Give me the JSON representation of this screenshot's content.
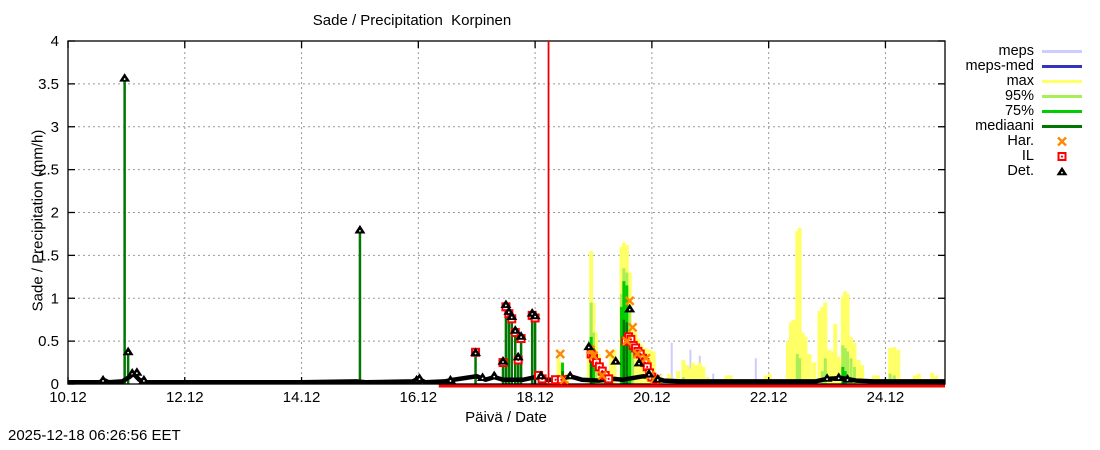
{
  "timestamp": "2025-12-18 06:26:56 EET",
  "chart_data": {
    "type": "mixed",
    "title": "Sade / Precipitation  Korpinen",
    "xlabel": "Päivä / Date",
    "ylabel": "Sade / Precipitation (mm/h)",
    "xlim": [
      10.0,
      25.02
    ],
    "ylim": [
      0,
      4
    ],
    "xticks": {
      "values": [
        10,
        12,
        14,
        16,
        18,
        20,
        22,
        24
      ],
      "labels": [
        "10.12",
        "12.12",
        "14.12",
        "16.12",
        "18.12",
        "20.12",
        "22.12",
        "24.12"
      ]
    },
    "yticks": {
      "values": [
        0,
        0.5,
        1,
        1.5,
        2,
        2.5,
        3,
        3.5,
        4
      ],
      "labels": [
        "0",
        "0.5",
        "1",
        "1.5",
        "2",
        "2.5",
        "3",
        "3.5",
        "4"
      ]
    },
    "grid": "dashed gray at major ticks",
    "legend_position": "outside right top",
    "now_line": {
      "x": 18.23,
      "color": "#ee0000"
    },
    "colors": {
      "meps": "#ccccff",
      "meps_med": "#3333bb",
      "max": "#ffff66",
      "p95": "#aaee55",
      "p75": "#00cc00",
      "mediaani": "#007700",
      "har": "#ff8800",
      "il": "#ff0000",
      "det": "#000000",
      "grid": "#999999",
      "axis": "#000000"
    },
    "legend": [
      {
        "label": "meps",
        "kind": "line",
        "color": "#ccccff"
      },
      {
        "label": "meps-med",
        "kind": "line",
        "color": "#3333bb"
      },
      {
        "label": "max",
        "kind": "line",
        "color": "#ffff66"
      },
      {
        "label": "95%",
        "kind": "line",
        "color": "#aaee55"
      },
      {
        "label": "75%",
        "kind": "line",
        "color": "#00cc00"
      },
      {
        "label": "mediaani",
        "kind": "line",
        "color": "#007700"
      },
      {
        "label": "Har.",
        "kind": "cross",
        "color": "#ff8800"
      },
      {
        "label": "IL",
        "kind": "square",
        "color": "#ff0000"
      },
      {
        "label": "Det.",
        "kind": "triangle",
        "color": "#000000"
      }
    ],
    "series": [
      {
        "name": "meps",
        "kind": "impulse",
        "color": "#ccccff",
        "width": 2,
        "points": [
          [
            20.15,
            0.12
          ],
          [
            20.34,
            0.48
          ],
          [
            20.45,
            0.08
          ],
          [
            20.55,
            0.1
          ],
          [
            20.66,
            0.4
          ],
          [
            20.73,
            0.15
          ],
          [
            20.82,
            0.33
          ],
          [
            21.05,
            0.12
          ],
          [
            21.78,
            0.3
          ]
        ]
      },
      {
        "name": "meps-med",
        "kind": "impulse",
        "color": "#3333bb",
        "width": 2,
        "points": []
      },
      {
        "name": "max",
        "kind": "impulse",
        "color": "#ffff66",
        "width": 4,
        "points": [
          [
            18.4,
            0.3
          ],
          [
            18.45,
            0.22
          ],
          [
            18.55,
            0.12
          ],
          [
            18.92,
            0.35
          ],
          [
            18.96,
            1.55
          ],
          [
            19.0,
            0.95
          ],
          [
            19.04,
            0.6
          ],
          [
            19.09,
            0.35
          ],
          [
            19.15,
            0.2
          ],
          [
            19.3,
            0.32
          ],
          [
            19.36,
            0.4
          ],
          [
            19.48,
            1.6
          ],
          [
            19.52,
            1.65
          ],
          [
            19.57,
            1.62
          ],
          [
            19.62,
            1.3
          ],
          [
            19.67,
            0.65
          ],
          [
            19.72,
            0.6
          ],
          [
            19.77,
            0.52
          ],
          [
            19.82,
            0.46
          ],
          [
            19.89,
            0.42
          ],
          [
            19.96,
            0.4
          ],
          [
            20.03,
            0.38
          ],
          [
            20.15,
            0.1
          ],
          [
            20.3,
            0.12
          ],
          [
            20.45,
            0.15
          ],
          [
            20.54,
            0.28
          ],
          [
            20.6,
            0.22
          ],
          [
            20.65,
            0.18
          ],
          [
            20.7,
            0.25
          ],
          [
            20.76,
            0.22
          ],
          [
            20.82,
            0.25
          ],
          [
            20.88,
            0.2
          ],
          [
            20.95,
            0.08
          ],
          [
            21.28,
            0.1
          ],
          [
            21.35,
            0.1
          ],
          [
            21.95,
            0.1
          ],
          [
            22.02,
            0.12
          ],
          [
            22.33,
            0.5
          ],
          [
            22.38,
            0.72
          ],
          [
            22.43,
            0.75
          ],
          [
            22.49,
            1.78
          ],
          [
            22.53,
            1.82
          ],
          [
            22.58,
            0.6
          ],
          [
            22.63,
            0.55
          ],
          [
            22.7,
            0.35
          ],
          [
            22.78,
            0.25
          ],
          [
            22.87,
            0.85
          ],
          [
            22.92,
            0.9
          ],
          [
            22.97,
            0.95
          ],
          [
            23.03,
            0.4
          ],
          [
            23.09,
            0.38
          ],
          [
            23.14,
            0.7
          ],
          [
            23.2,
            0.32
          ],
          [
            23.27,
            1.02
          ],
          [
            23.31,
            1.08
          ],
          [
            23.35,
            1.05
          ],
          [
            23.41,
            0.55
          ],
          [
            23.47,
            0.48
          ],
          [
            23.54,
            0.28
          ],
          [
            23.6,
            0.22
          ],
          [
            23.8,
            0.1
          ],
          [
            23.87,
            0.1
          ],
          [
            24.08,
            0.42
          ],
          [
            24.15,
            0.43
          ],
          [
            24.22,
            0.4
          ],
          [
            24.5,
            0.1
          ],
          [
            24.57,
            0.12
          ],
          [
            24.8,
            0.13
          ],
          [
            24.87,
            0.1
          ]
        ]
      },
      {
        "name": "95%",
        "kind": "impulse",
        "color": "#aaee55",
        "width": 3,
        "points": [
          [
            18.96,
            0.95
          ],
          [
            19.0,
            0.6
          ],
          [
            19.04,
            0.35
          ],
          [
            19.48,
            1.05
          ],
          [
            19.52,
            1.35
          ],
          [
            19.57,
            1.3
          ],
          [
            19.62,
            0.9
          ],
          [
            19.67,
            0.45
          ],
          [
            20.54,
            0.08
          ],
          [
            22.49,
            0.35
          ],
          [
            22.53,
            0.3
          ],
          [
            22.92,
            0.15
          ],
          [
            22.97,
            0.3
          ],
          [
            23.27,
            0.45
          ],
          [
            23.31,
            0.42
          ],
          [
            23.35,
            0.38
          ],
          [
            23.41,
            0.3
          ],
          [
            23.47,
            0.2
          ],
          [
            24.08,
            0.12
          ],
          [
            24.15,
            0.1
          ]
        ]
      },
      {
        "name": "75%",
        "kind": "impulse",
        "color": "#00cc00",
        "width": 3,
        "points": [
          [
            18.47,
            0.25
          ],
          [
            18.96,
            0.55
          ],
          [
            19.0,
            0.42
          ],
          [
            19.48,
            0.9
          ],
          [
            19.52,
            1.2
          ],
          [
            19.57,
            1.15
          ],
          [
            19.62,
            0.6
          ],
          [
            23.27,
            0.2
          ],
          [
            23.31,
            0.15
          ]
        ]
      },
      {
        "name": "mediaani",
        "kind": "impulse",
        "color": "#007700",
        "width": 2.5,
        "points": [
          [
            10.97,
            3.57
          ],
          [
            11.03,
            0.38
          ],
          [
            15.0,
            1.8
          ],
          [
            16.98,
            0.35
          ],
          [
            17.45,
            0.25
          ],
          [
            17.5,
            0.92
          ],
          [
            17.55,
            0.83
          ],
          [
            17.6,
            0.78
          ],
          [
            17.66,
            0.62
          ],
          [
            17.71,
            0.3
          ],
          [
            17.76,
            0.55
          ],
          [
            17.95,
            0.82
          ],
          [
            18.0,
            0.79
          ],
          [
            18.47,
            0.15
          ],
          [
            18.96,
            0.3
          ],
          [
            19.52,
            0.75
          ],
          [
            19.57,
            0.72
          ]
        ]
      },
      {
        "name": "Har.",
        "kind": "cross",
        "color": "#ff8800",
        "points": [
          [
            18.43,
            0.35
          ],
          [
            18.5,
            0.05
          ],
          [
            18.95,
            0.4
          ],
          [
            19.0,
            0.33
          ],
          [
            19.15,
            0.1
          ],
          [
            19.28,
            0.35
          ],
          [
            19.57,
            0.5
          ],
          [
            19.62,
            0.97
          ],
          [
            19.67,
            0.66
          ],
          [
            19.75,
            0.35
          ],
          [
            19.9,
            0.3
          ],
          [
            19.97,
            0.1
          ],
          [
            20.05,
            0.06
          ]
        ]
      },
      {
        "name": "IL",
        "kind": "square",
        "color": "#ff0000",
        "baseline": {
          "from": 16.35,
          "to": 25.02,
          "y": 0.0
        },
        "points": [
          [
            16.98,
            0.37
          ],
          [
            17.45,
            0.25
          ],
          [
            17.5,
            0.9
          ],
          [
            17.55,
            0.82
          ],
          [
            17.6,
            0.76
          ],
          [
            17.66,
            0.6
          ],
          [
            17.71,
            0.28
          ],
          [
            17.76,
            0.53
          ],
          [
            17.95,
            0.8
          ],
          [
            18.0,
            0.77
          ],
          [
            18.06,
            0.1
          ],
          [
            18.12,
            0.06
          ],
          [
            18.35,
            0.05
          ],
          [
            18.45,
            0.05
          ],
          [
            18.96,
            0.35
          ],
          [
            19.0,
            0.3
          ],
          [
            19.05,
            0.25
          ],
          [
            19.1,
            0.2
          ],
          [
            19.15,
            0.15
          ],
          [
            19.2,
            0.1
          ],
          [
            19.26,
            0.06
          ],
          [
            19.55,
            0.5
          ],
          [
            19.6,
            0.55
          ],
          [
            19.64,
            0.52
          ],
          [
            19.68,
            0.45
          ],
          [
            19.72,
            0.42
          ],
          [
            19.76,
            0.38
          ],
          [
            19.8,
            0.35
          ],
          [
            19.84,
            0.3
          ],
          [
            19.88,
            0.25
          ],
          [
            19.92,
            0.2
          ],
          [
            19.96,
            0.13
          ],
          [
            20.0,
            0.08
          ],
          [
            20.06,
            0.05
          ]
        ]
      },
      {
        "name": "Det.",
        "kind": "triangle-line",
        "color": "#000000",
        "baseline_points": [
          [
            10.0,
            0.02
          ],
          [
            10.55,
            0.02
          ],
          [
            10.6,
            0.05
          ],
          [
            10.7,
            0.02
          ],
          [
            10.93,
            0.03
          ],
          [
            11.05,
            0.08
          ],
          [
            11.12,
            0.12
          ],
          [
            11.22,
            0.05
          ],
          [
            11.35,
            0.02
          ],
          [
            12.5,
            0.02
          ],
          [
            14.0,
            0.02
          ],
          [
            14.95,
            0.03
          ],
          [
            15.1,
            0.02
          ],
          [
            15.9,
            0.03
          ],
          [
            16.0,
            0.06
          ],
          [
            16.12,
            0.02
          ],
          [
            16.45,
            0.03
          ],
          [
            16.6,
            0.05
          ],
          [
            16.8,
            0.07
          ],
          [
            17.0,
            0.09
          ],
          [
            17.15,
            0.05
          ],
          [
            17.3,
            0.08
          ],
          [
            17.45,
            0.05
          ],
          [
            17.8,
            0.05
          ],
          [
            18.0,
            0.08
          ],
          [
            18.15,
            0.05
          ],
          [
            18.4,
            0.05
          ],
          [
            18.6,
            0.09
          ],
          [
            18.8,
            0.05
          ],
          [
            19.1,
            0.04
          ],
          [
            19.35,
            0.06
          ],
          [
            19.5,
            0.05
          ],
          [
            19.85,
            0.09
          ],
          [
            20.05,
            0.07
          ],
          [
            20.2,
            0.04
          ],
          [
            20.5,
            0.03
          ],
          [
            21.5,
            0.03
          ],
          [
            22.8,
            0.03
          ],
          [
            23.0,
            0.06
          ],
          [
            23.25,
            0.07
          ],
          [
            23.5,
            0.04
          ],
          [
            23.8,
            0.03
          ],
          [
            25.02,
            0.03
          ]
        ],
        "points": [
          [
            10.6,
            0.05
          ],
          [
            10.97,
            3.57
          ],
          [
            11.03,
            0.38
          ],
          [
            11.1,
            0.13
          ],
          [
            11.18,
            0.14
          ],
          [
            11.3,
            0.05
          ],
          [
            15.0,
            1.8
          ],
          [
            15.97,
            0.05
          ],
          [
            16.02,
            0.07
          ],
          [
            16.55,
            0.05
          ],
          [
            16.98,
            0.37
          ],
          [
            17.1,
            0.08
          ],
          [
            17.3,
            0.1
          ],
          [
            17.45,
            0.27
          ],
          [
            17.5,
            0.93
          ],
          [
            17.55,
            0.85
          ],
          [
            17.6,
            0.79
          ],
          [
            17.66,
            0.63
          ],
          [
            17.71,
            0.32
          ],
          [
            17.76,
            0.56
          ],
          [
            17.95,
            0.83
          ],
          [
            18.0,
            0.8
          ],
          [
            18.1,
            0.1
          ],
          [
            18.6,
            0.1
          ],
          [
            18.92,
            0.44
          ],
          [
            19.38,
            0.27
          ],
          [
            19.62,
            0.88
          ],
          [
            19.78,
            0.25
          ],
          [
            19.95,
            0.12
          ],
          [
            20.1,
            0.06
          ],
          [
            23.0,
            0.07
          ],
          [
            23.2,
            0.08
          ],
          [
            23.35,
            0.06
          ]
        ]
      }
    ]
  }
}
